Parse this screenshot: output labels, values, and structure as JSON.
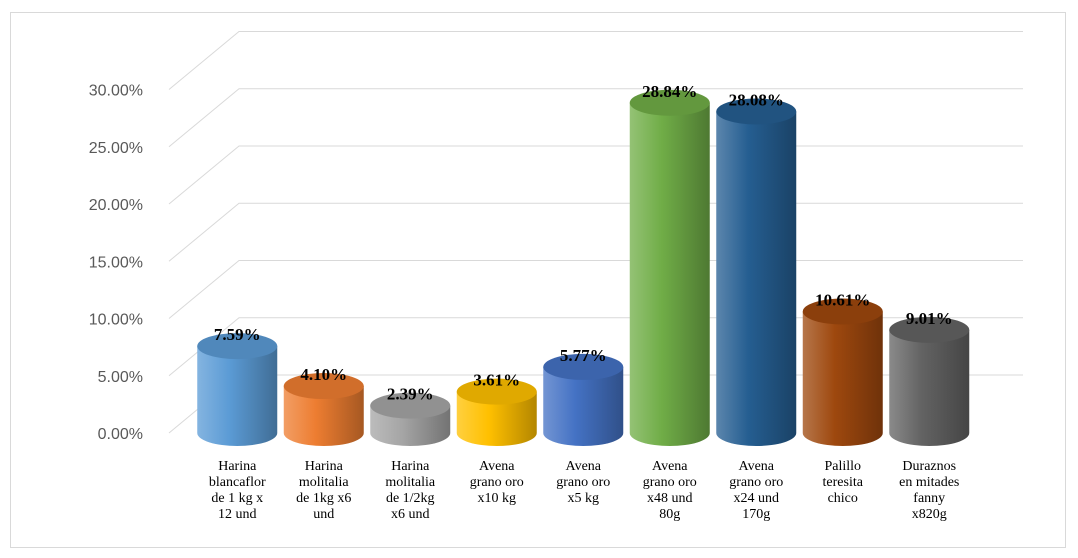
{
  "chart_data": {
    "type": "bar",
    "style": "3d-cylinder",
    "title": "",
    "xlabel": "",
    "ylabel": "",
    "ylim": [
      0,
      0.35
    ],
    "grid": true,
    "legend": "none",
    "yticks": [
      "0.00%",
      "5.00%",
      "10.00%",
      "15.00%",
      "20.00%",
      "25.00%",
      "30.00%"
    ],
    "categories": [
      "Harina\nblancaflor\nde 1 kg x\n12 und",
      "Harina\nmolitalia\nde 1kg  x6\nund",
      "Harina\nmolitalia\nde 1/2kg\nx6 und",
      "Avena\ngrano oro\nx10 kg",
      "Avena\ngrano oro\nx5 kg",
      "Avena\ngrano oro\nx48 und\n80g",
      "Avena\ngrano oro\nx24 und\n170g",
      "Palillo\nteresita\nchico",
      "Duraznos\nen mitades\nfanny\nx820g"
    ],
    "values": [
      0.0759,
      0.041,
      0.0239,
      0.0361,
      0.0577,
      0.2884,
      0.2808,
      0.1061,
      0.0901
    ],
    "data_labels": [
      "7.59%",
      "4.10%",
      "2.39%",
      "3.61%",
      "5.77%",
      "28.84%",
      "28.08%",
      "10.61%",
      "9.01%"
    ],
    "colors": [
      "#5b9bd5",
      "#ed7d31",
      "#a5a5a5",
      "#ffc000",
      "#4472c4",
      "#70ad47",
      "#255e91",
      "#9e480e",
      "#636363"
    ]
  }
}
